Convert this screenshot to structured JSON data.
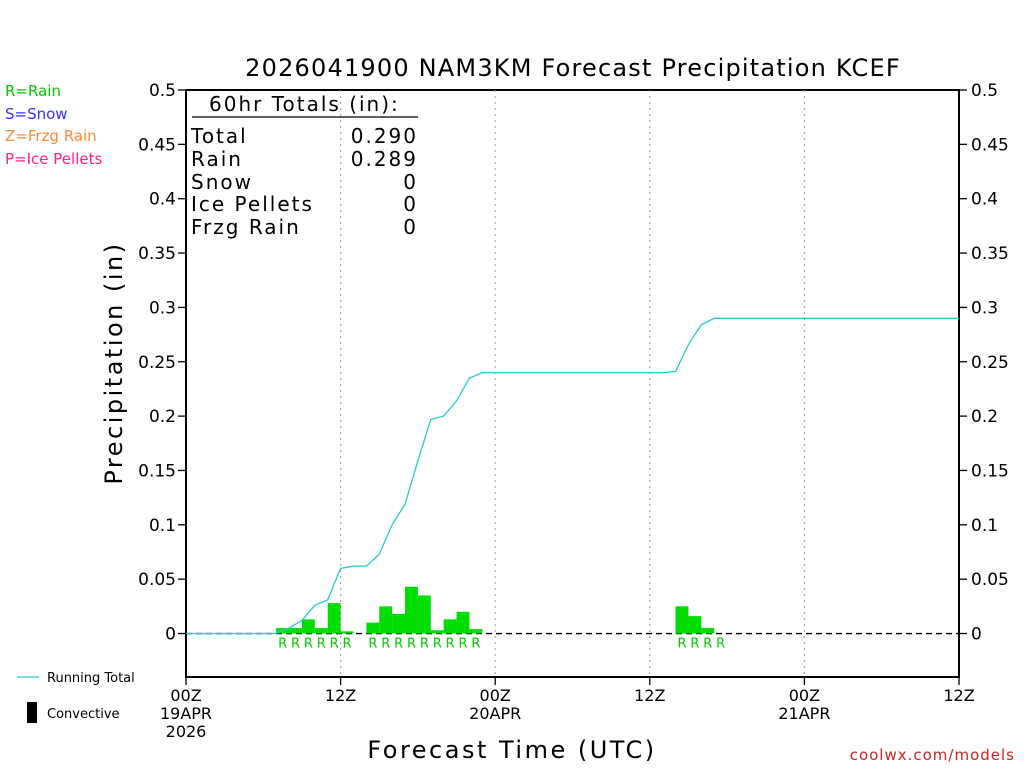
{
  "chart_data": {
    "type": "bar",
    "title": "2026041900 NAM3KM Forecast Precipitation KCEF",
    "xlabel": "Forecast Time (UTC)",
    "ylabel": "Precipitation (in)",
    "xlim": [
      0,
      60
    ],
    "ylim": [
      -0.04,
      0.5
    ],
    "y_ticks": [
      0,
      0.05,
      0.1,
      0.15,
      0.2,
      0.25,
      0.3,
      0.35,
      0.4,
      0.45,
      0.5
    ],
    "y_tick_labels": [
      "0",
      "0.05",
      "0.1",
      "0.15",
      "0.2",
      "0.25",
      "0.3",
      "0.35",
      "0.4",
      "0.45",
      "0.5"
    ],
    "x_ticks": [
      {
        "hour": 0,
        "lines": [
          "00Z",
          "19APR",
          "2026"
        ]
      },
      {
        "hour": 12,
        "lines": [
          "12Z"
        ]
      },
      {
        "hour": 24,
        "lines": [
          "00Z",
          "20APR"
        ]
      },
      {
        "hour": 36,
        "lines": [
          "12Z"
        ]
      },
      {
        "hour": 48,
        "lines": [
          "00Z",
          "21APR"
        ]
      },
      {
        "hour": 60,
        "lines": [
          "12Z"
        ]
      }
    ],
    "grid_hours": [
      12,
      24,
      36,
      48
    ],
    "precip_type_legend": [
      {
        "label": "R=Rain",
        "color": "#00cc00"
      },
      {
        "label": "S=Snow",
        "color": "#3333ff"
      },
      {
        "label": "Z=Frzg Rain",
        "color": "#ff8833"
      },
      {
        "label": "P=Ice Pellets",
        "color": "#ff2288"
      }
    ],
    "totals": {
      "header": "60hr Totals (in):",
      "rows": [
        {
          "label": "Total",
          "value": "0.290"
        },
        {
          "label": "Rain",
          "value": "0.289"
        },
        {
          "label": "Snow",
          "value": "0"
        },
        {
          "label": "Ice Pellets",
          "value": "0"
        },
        {
          "label": "Frzg Rain",
          "value": "0"
        }
      ]
    },
    "series": [
      {
        "name": "Hourly Precipitation",
        "type": "bar",
        "color": "#00dd00",
        "bars": [
          {
            "hour": 7.5,
            "value": 0.005
          },
          {
            "hour": 8.5,
            "value": 0.005
          },
          {
            "hour": 9.5,
            "value": 0.013
          },
          {
            "hour": 10.5,
            "value": 0.005
          },
          {
            "hour": 11.5,
            "value": 0.028
          },
          {
            "hour": 12.5,
            "value": 0.002
          },
          {
            "hour": 14.5,
            "value": 0.01
          },
          {
            "hour": 15.5,
            "value": 0.025
          },
          {
            "hour": 16.5,
            "value": 0.018
          },
          {
            "hour": 17.5,
            "value": 0.043
          },
          {
            "hour": 18.5,
            "value": 0.035
          },
          {
            "hour": 19.5,
            "value": 0.003
          },
          {
            "hour": 20.5,
            "value": 0.013
          },
          {
            "hour": 21.5,
            "value": 0.02
          },
          {
            "hour": 22.5,
            "value": 0.004
          },
          {
            "hour": 38.5,
            "value": 0.025
          },
          {
            "hour": 39.5,
            "value": 0.016
          },
          {
            "hour": 40.5,
            "value": 0.005
          }
        ]
      },
      {
        "name": "Running Total",
        "type": "line",
        "color": "#22cccc",
        "x": [
          0,
          7,
          8,
          9,
          10,
          11,
          12,
          13,
          14,
          15,
          16,
          17,
          18,
          19,
          20,
          21,
          22,
          23,
          24,
          37,
          38,
          39,
          40,
          41,
          42,
          43,
          60
        ],
        "y": [
          0,
          0,
          0.005,
          0.012,
          0.026,
          0.031,
          0.06,
          0.062,
          0.062,
          0.073,
          0.1,
          0.119,
          0.159,
          0.197,
          0.2,
          0.214,
          0.235,
          0.24,
          0.24,
          0.24,
          0.241,
          0.266,
          0.284,
          0.29,
          0.29,
          0.29,
          0.29
        ]
      }
    ],
    "type_markers": [
      {
        "hour": 8,
        "letter": "R"
      },
      {
        "hour": 9,
        "letter": "R"
      },
      {
        "hour": 10,
        "letter": "R"
      },
      {
        "hour": 11,
        "letter": "R"
      },
      {
        "hour": 12,
        "letter": "R"
      },
      {
        "hour": 13,
        "letter": "R"
      },
      {
        "hour": 15,
        "letter": "R"
      },
      {
        "hour": 16,
        "letter": "R"
      },
      {
        "hour": 17,
        "letter": "R"
      },
      {
        "hour": 18,
        "letter": "R"
      },
      {
        "hour": 19,
        "letter": "R"
      },
      {
        "hour": 20,
        "letter": "R"
      },
      {
        "hour": 21,
        "letter": "R"
      },
      {
        "hour": 22,
        "letter": "R"
      },
      {
        "hour": 23,
        "letter": "R"
      },
      {
        "hour": 39,
        "letter": "R"
      },
      {
        "hour": 40,
        "letter": "R"
      },
      {
        "hour": 41,
        "letter": "R"
      },
      {
        "hour": 42,
        "letter": "R"
      }
    ],
    "bottom_legend": [
      {
        "label": "Running Total",
        "kind": "line",
        "color": "#22cccc"
      },
      {
        "label": "Convective",
        "kind": "bar",
        "color": "#000000"
      }
    ],
    "credit": "coolwx.com/models"
  }
}
